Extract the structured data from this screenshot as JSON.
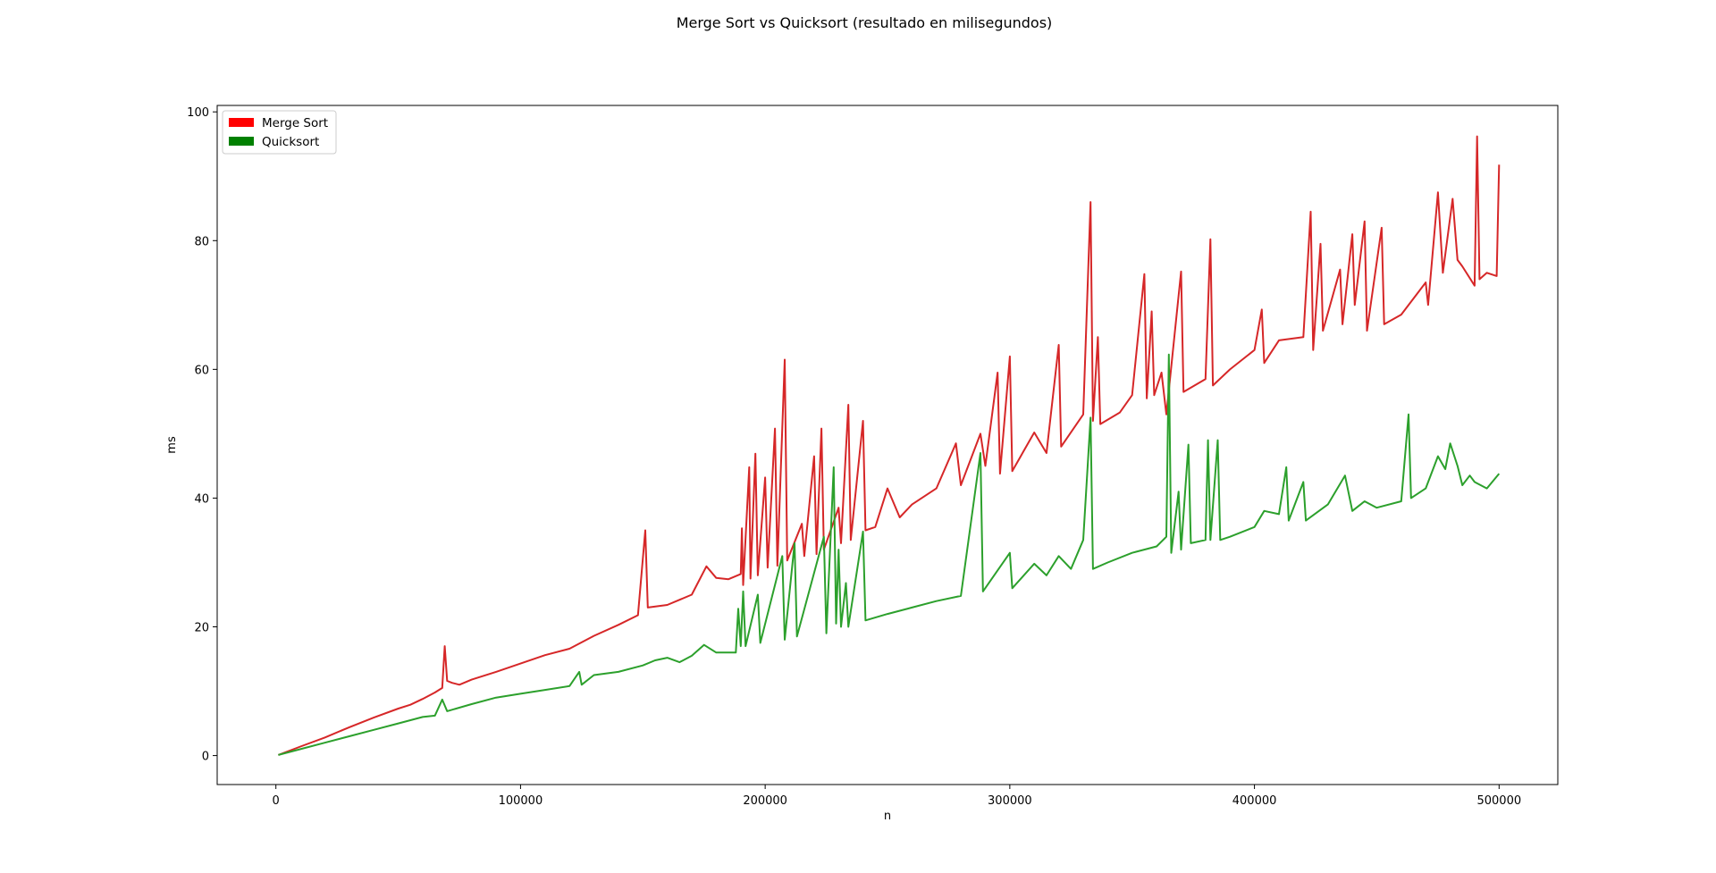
{
  "chart_data": {
    "type": "line",
    "title": "Merge Sort vs Quicksort (resultado en milisegundos)",
    "xlabel": "n",
    "ylabel": "ms",
    "xlim": [
      -24000,
      524000
    ],
    "ylim": [
      -4.5,
      101
    ],
    "x_ticks": [
      0,
      100000,
      200000,
      300000,
      400000,
      500000
    ],
    "y_ticks": [
      0,
      20,
      40,
      60,
      80,
      100
    ],
    "grid": false,
    "legend_position": "upper-left",
    "legend": [
      {
        "label": "Merge Sort",
        "color": "#ff0000"
      },
      {
        "label": "Quicksort",
        "color": "#008000"
      }
    ],
    "series": [
      {
        "name": "Merge Sort",
        "color": "#d62728",
        "points": [
          [
            1000,
            0.1
          ],
          [
            10000,
            1.4
          ],
          [
            20000,
            2.8
          ],
          [
            30000,
            4.4
          ],
          [
            40000,
            5.9
          ],
          [
            50000,
            7.3
          ],
          [
            55000,
            7.9
          ],
          [
            60000,
            8.8
          ],
          [
            65000,
            9.8
          ],
          [
            68000,
            10.5
          ],
          [
            69000,
            17.0
          ],
          [
            70000,
            11.6
          ],
          [
            72000,
            11.3
          ],
          [
            75000,
            11.0
          ],
          [
            80000,
            11.8
          ],
          [
            90000,
            13.0
          ],
          [
            100000,
            14.3
          ],
          [
            110000,
            15.6
          ],
          [
            120000,
            16.6
          ],
          [
            130000,
            18.6
          ],
          [
            140000,
            20.3
          ],
          [
            148000,
            21.8
          ],
          [
            151000,
            35.0
          ],
          [
            152000,
            23.0
          ],
          [
            160000,
            23.4
          ],
          [
            170000,
            25.0
          ],
          [
            176000,
            29.4
          ],
          [
            180000,
            27.6
          ],
          [
            185000,
            27.4
          ],
          [
            190000,
            28.2
          ],
          [
            190500,
            35.3
          ],
          [
            191000,
            26.5
          ],
          [
            193500,
            44.8
          ],
          [
            194000,
            27.5
          ],
          [
            196000,
            46.9
          ],
          [
            197000,
            28.0
          ],
          [
            200000,
            43.2
          ],
          [
            201000,
            29.2
          ],
          [
            204000,
            50.8
          ],
          [
            205000,
            29.5
          ],
          [
            208000,
            61.5
          ],
          [
            209000,
            30.3
          ],
          [
            215000,
            36.0
          ],
          [
            216000,
            31.0
          ],
          [
            220000,
            46.5
          ],
          [
            221000,
            31.3
          ],
          [
            223000,
            50.8
          ],
          [
            224000,
            32.0
          ],
          [
            230000,
            38.5
          ],
          [
            231000,
            33.0
          ],
          [
            234000,
            54.5
          ],
          [
            235000,
            33.5
          ],
          [
            240000,
            52.0
          ],
          [
            241000,
            35.0
          ],
          [
            245000,
            35.5
          ],
          [
            250000,
            41.5
          ],
          [
            255000,
            37.0
          ],
          [
            260000,
            39.0
          ],
          [
            270000,
            41.5
          ],
          [
            278000,
            48.5
          ],
          [
            280000,
            42.0
          ],
          [
            288000,
            50.0
          ],
          [
            290000,
            45.0
          ],
          [
            295000,
            59.5
          ],
          [
            296000,
            43.8
          ],
          [
            300000,
            62.0
          ],
          [
            301000,
            44.2
          ],
          [
            310000,
            50.2
          ],
          [
            315000,
            47.0
          ],
          [
            320000,
            63.8
          ],
          [
            321000,
            48.0
          ],
          [
            330000,
            53.0
          ],
          [
            333000,
            86.0
          ],
          [
            334000,
            52.0
          ],
          [
            336000,
            65.0
          ],
          [
            337000,
            51.5
          ],
          [
            345000,
            53.3
          ],
          [
            350000,
            56.0
          ],
          [
            355000,
            74.8
          ],
          [
            356000,
            55.5
          ],
          [
            358000,
            69.0
          ],
          [
            359000,
            56.0
          ],
          [
            362000,
            59.5
          ],
          [
            364000,
            53.0
          ],
          [
            370000,
            75.2
          ],
          [
            371000,
            56.5
          ],
          [
            380000,
            58.5
          ],
          [
            382000,
            80.2
          ],
          [
            383000,
            57.5
          ],
          [
            390000,
            60.0
          ],
          [
            400000,
            63.0
          ],
          [
            403000,
            69.3
          ],
          [
            404000,
            61.0
          ],
          [
            410000,
            64.5
          ],
          [
            420000,
            65.0
          ],
          [
            423000,
            84.5
          ],
          [
            424000,
            63.0
          ],
          [
            427000,
            79.5
          ],
          [
            428000,
            66.0
          ],
          [
            435000,
            75.5
          ],
          [
            436000,
            67.0
          ],
          [
            440000,
            81.0
          ],
          [
            441000,
            70.0
          ],
          [
            445000,
            83.0
          ],
          [
            446000,
            66.0
          ],
          [
            452000,
            82.0
          ],
          [
            453000,
            67.0
          ],
          [
            460000,
            68.5
          ],
          [
            470000,
            73.5
          ],
          [
            471000,
            70.0
          ],
          [
            475000,
            87.5
          ],
          [
            477000,
            75.0
          ],
          [
            481000,
            86.5
          ],
          [
            483000,
            77.0
          ],
          [
            485000,
            76.0
          ],
          [
            490000,
            73.0
          ],
          [
            491000,
            96.2
          ],
          [
            492000,
            74.0
          ],
          [
            495000,
            75.0
          ],
          [
            499000,
            74.5
          ],
          [
            500000,
            91.8
          ]
        ]
      },
      {
        "name": "Quicksort",
        "color": "#2ca02c",
        "points": [
          [
            1000,
            0.1
          ],
          [
            10000,
            1.0
          ],
          [
            20000,
            2.0
          ],
          [
            30000,
            3.0
          ],
          [
            40000,
            4.0
          ],
          [
            50000,
            5.0
          ],
          [
            60000,
            6.0
          ],
          [
            65000,
            6.2
          ],
          [
            68000,
            8.7
          ],
          [
            70000,
            6.9
          ],
          [
            80000,
            8.0
          ],
          [
            90000,
            9.0
          ],
          [
            100000,
            9.6
          ],
          [
            110000,
            10.2
          ],
          [
            120000,
            10.8
          ],
          [
            124000,
            13.0
          ],
          [
            125000,
            11.0
          ],
          [
            130000,
            12.5
          ],
          [
            140000,
            13.0
          ],
          [
            150000,
            14.0
          ],
          [
            155000,
            14.8
          ],
          [
            160000,
            15.2
          ],
          [
            165000,
            14.5
          ],
          [
            170000,
            15.5
          ],
          [
            175000,
            17.2
          ],
          [
            180000,
            16.0
          ],
          [
            188000,
            16.0
          ],
          [
            189000,
            22.8
          ],
          [
            190000,
            17.0
          ],
          [
            191000,
            25.5
          ],
          [
            192000,
            17.0
          ],
          [
            197000,
            25.0
          ],
          [
            198000,
            17.5
          ],
          [
            207000,
            31.0
          ],
          [
            208000,
            18.0
          ],
          [
            212000,
            33.0
          ],
          [
            213000,
            18.5
          ],
          [
            224000,
            34.0
          ],
          [
            225000,
            19.0
          ],
          [
            228000,
            44.8
          ],
          [
            229000,
            20.5
          ],
          [
            230000,
            32.0
          ],
          [
            231000,
            20.0
          ],
          [
            233000,
            26.8
          ],
          [
            234000,
            20.0
          ],
          [
            240000,
            34.8
          ],
          [
            241000,
            21.0
          ],
          [
            250000,
            22.0
          ],
          [
            260000,
            23.0
          ],
          [
            270000,
            24.0
          ],
          [
            280000,
            24.8
          ],
          [
            288000,
            47.0
          ],
          [
            289000,
            25.5
          ],
          [
            300000,
            31.5
          ],
          [
            301000,
            26.0
          ],
          [
            310000,
            29.8
          ],
          [
            315000,
            28.0
          ],
          [
            320000,
            31.0
          ],
          [
            325000,
            29.0
          ],
          [
            330000,
            33.5
          ],
          [
            333000,
            52.5
          ],
          [
            334000,
            29.0
          ],
          [
            340000,
            30.0
          ],
          [
            350000,
            31.5
          ],
          [
            360000,
            32.5
          ],
          [
            364000,
            34.0
          ],
          [
            365000,
            62.3
          ],
          [
            366000,
            31.5
          ],
          [
            369000,
            41.0
          ],
          [
            370000,
            32.0
          ],
          [
            373000,
            48.3
          ],
          [
            374000,
            33.0
          ],
          [
            380000,
            33.5
          ],
          [
            381000,
            49.0
          ],
          [
            382000,
            33.5
          ],
          [
            385000,
            49.0
          ],
          [
            386000,
            33.5
          ],
          [
            390000,
            34.0
          ],
          [
            400000,
            35.5
          ],
          [
            404000,
            38.0
          ],
          [
            410000,
            37.5
          ],
          [
            413000,
            44.8
          ],
          [
            414000,
            36.5
          ],
          [
            420000,
            42.5
          ],
          [
            421000,
            36.5
          ],
          [
            430000,
            39.0
          ],
          [
            437000,
            43.5
          ],
          [
            440000,
            38.0
          ],
          [
            445000,
            39.5
          ],
          [
            450000,
            38.5
          ],
          [
            460000,
            39.5
          ],
          [
            463000,
            53.0
          ],
          [
            464000,
            40.0
          ],
          [
            470000,
            41.5
          ],
          [
            475000,
            46.5
          ],
          [
            478000,
            44.5
          ],
          [
            480000,
            48.5
          ],
          [
            483000,
            45.0
          ],
          [
            485000,
            42.0
          ],
          [
            488000,
            43.5
          ],
          [
            490000,
            42.5
          ],
          [
            495000,
            41.5
          ],
          [
            500000,
            43.8
          ]
        ]
      }
    ]
  }
}
